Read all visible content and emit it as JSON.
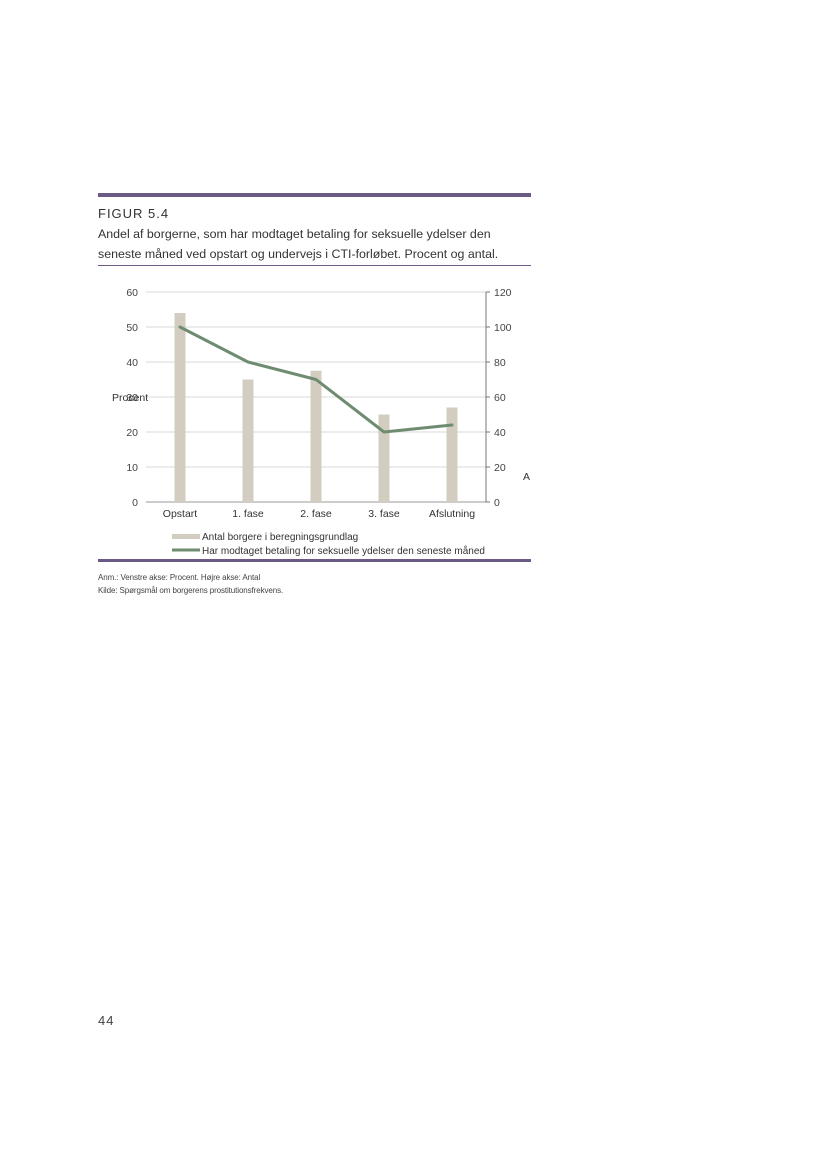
{
  "figure": {
    "label": "FIGUR 5.4",
    "title": "Andel af borgerne, som har modtaget betaling for seksuelle ydelser den seneste måned ved opstart og undervejs i CTI-forløbet. Procent og antal."
  },
  "chart_data": {
    "type": "bar",
    "categories": [
      "Opstart",
      "1. fase",
      "2. fase",
      "3. fase",
      "Afslutning"
    ],
    "ylabel": "Procent",
    "y2label": "A",
    "ylim": [
      0,
      60
    ],
    "y2lim": [
      0,
      120
    ],
    "yticks": [
      0,
      10,
      20,
      30,
      40,
      50,
      60
    ],
    "y2ticks": [
      0,
      20,
      40,
      60,
      80,
      100,
      120
    ],
    "grid": true,
    "legend_position": "bottom",
    "series": [
      {
        "name": "Antal borgere i beregningsgrundlag",
        "type": "bar",
        "axis": "right",
        "color": "#d3cdc1",
        "values": [
          108,
          70,
          75,
          50,
          54
        ]
      },
      {
        "name": "Har modtaget betaling for seksuelle ydelser den seneste måned",
        "type": "line",
        "axis": "left",
        "color": "#6e8c6f",
        "values": [
          50,
          40,
          35,
          20,
          22
        ]
      }
    ]
  },
  "notes": {
    "anm": "Anm.: Venstre akse: Procent. Højre akse: Antal",
    "kilde": "Kilde: Spørgsmål om borgerens prostitutionsfrekvens."
  },
  "page_number": "44"
}
